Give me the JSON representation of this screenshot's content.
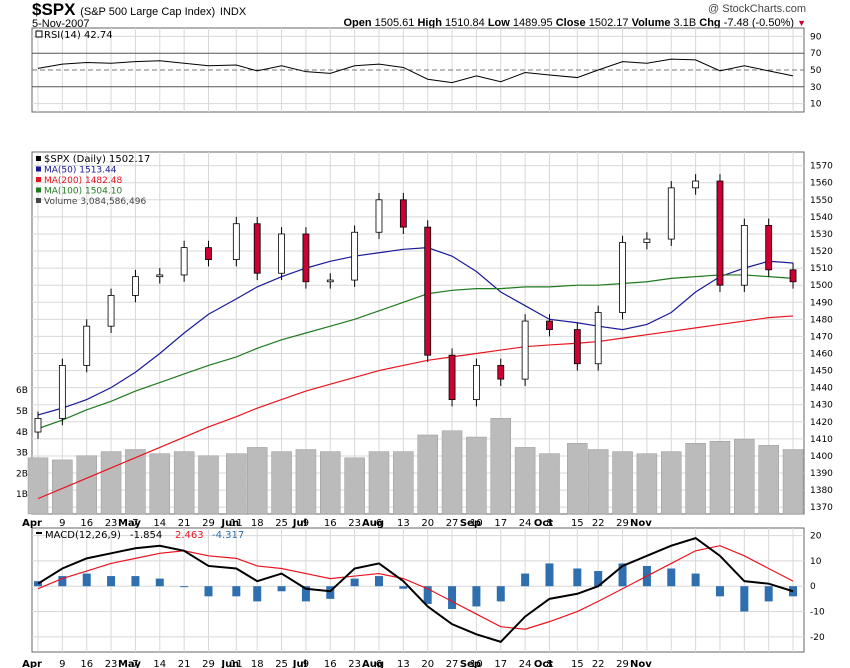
{
  "header": {
    "symbol": "$SPX",
    "name": "(S&P 500 Large Cap Index)",
    "exchange": "INDX",
    "date": "5-Nov-2007",
    "watermark": "@ StockCharts.com",
    "open_label": "Open",
    "open": "1505.61",
    "high_label": "High",
    "high": "1510.84",
    "low_label": "Low",
    "low": "1489.95",
    "close_label": "Close",
    "close": "1502.17",
    "volume_label": "Volume",
    "volume": "3.1B",
    "chg_label": "Chg",
    "chg": "-7.48 (-0.50%)"
  },
  "colors": {
    "up_candle": "#ffffff",
    "down_candle": "#cc0033",
    "ma50": "#1a1a99",
    "ma200": "#e8141e",
    "ma100": "#1f7a1f",
    "rsi": "#000000",
    "macd": "#000000",
    "macd_signal": "#e8141e",
    "histogram": "#2f6fb0",
    "volume": "#bbbbbb",
    "grid": "#d8d8d8"
  },
  "rsi_panel": {
    "legend": "RSI(14) 42.74",
    "ticks": [
      "90",
      "70",
      "50",
      "30",
      "10"
    ]
  },
  "price_panel": {
    "legend": [
      {
        "text": "$SPX (Daily) 1502.17",
        "color": "#000000"
      },
      {
        "text": "MA(50) 1513.44",
        "color": "#1a1a99"
      },
      {
        "text": "MA(200) 1482.48",
        "color": "#e8141e"
      },
      {
        "text": "MA(100) 1504.10",
        "color": "#1f7a1f"
      },
      {
        "text": "Volume 3,084,586,496",
        "color": "#444444"
      }
    ],
    "ticks": [
      "1570",
      "1560",
      "1550",
      "1540",
      "1530",
      "1520",
      "1510",
      "1500",
      "1490",
      "1480",
      "1470",
      "1460",
      "1450",
      "1440",
      "1430",
      "1420",
      "1410",
      "1400",
      "1390",
      "1380",
      "1370"
    ],
    "volume_ticks": [
      "6B",
      "5B",
      "4B",
      "3B",
      "2B",
      "1B"
    ]
  },
  "macd_panel": {
    "legend_label": "MACD(12,26,9)",
    "macd": "-1.854",
    "signal": "2.463",
    "histogram": "-4.317",
    "ticks": [
      "20",
      "10",
      "0",
      "-10",
      "-20"
    ]
  },
  "x_labels": [
    "Apr",
    "9",
    "16",
    "23",
    "May",
    "7",
    "14",
    "21",
    "29",
    "Jun",
    "11",
    "18",
    "25",
    "Jul",
    "9",
    "16",
    "23",
    "Aug",
    "6",
    "13",
    "20",
    "27",
    "Sep",
    "10",
    "17",
    "24",
    "Oct",
    "8",
    "15",
    "22",
    "29",
    "Nov"
  ],
  "chart_data": {
    "type": "candlestick",
    "title": "$SPX (S&P 500 Large Cap Index) INDX",
    "x_range": [
      "2007-04-02",
      "2007-11-05"
    ],
    "ylim": [
      1366,
      1578
    ],
    "grid": true,
    "legend_position": "top-left",
    "dates": [
      "2007-04-02",
      "2007-04-09",
      "2007-04-16",
      "2007-04-23",
      "2007-04-30",
      "2007-05-07",
      "2007-05-14",
      "2007-05-21",
      "2007-05-29",
      "2007-06-04",
      "2007-06-11",
      "2007-06-18",
      "2007-06-25",
      "2007-07-02",
      "2007-07-09",
      "2007-07-16",
      "2007-07-23",
      "2007-07-30",
      "2007-08-06",
      "2007-08-13",
      "2007-08-20",
      "2007-08-27",
      "2007-09-04",
      "2007-09-10",
      "2007-09-17",
      "2007-09-24",
      "2007-10-01",
      "2007-10-08",
      "2007-10-15",
      "2007-10-22",
      "2007-10-29",
      "2007-11-05"
    ],
    "close": [
      1422,
      1453,
      1476,
      1494,
      1505,
      1506,
      1522,
      1515,
      1536,
      1507,
      1530,
      1502,
      1503,
      1531,
      1550,
      1534,
      1459,
      1433,
      1453,
      1445,
      1479,
      1474,
      1454,
      1484,
      1525,
      1527,
      1557,
      1561,
      1500,
      1535,
      1509,
      1502
    ],
    "series": [
      {
        "name": "MA(50)",
        "values": [
          1424,
          1428,
          1433,
          1440,
          1449,
          1460,
          1472,
          1483,
          1492,
          1499,
          1505,
          1510,
          1514,
          1517,
          1519,
          1521,
          1522,
          1517,
          1508,
          1496,
          1488,
          1480,
          1478,
          1476,
          1474,
          1477,
          1484,
          1496,
          1505,
          1510,
          1514,
          1513
        ]
      },
      {
        "name": "MA(100)",
        "values": [
          1416,
          1421,
          1427,
          1432,
          1438,
          1443,
          1448,
          1453,
          1458,
          1463,
          1468,
          1472,
          1476,
          1480,
          1485,
          1490,
          1495,
          1497,
          1498,
          1498,
          1499,
          1499,
          1500,
          1500,
          1501,
          1502,
          1504,
          1505,
          1506,
          1506,
          1505,
          1504
        ]
      },
      {
        "name": "MA(200)",
        "values": [
          1375,
          1381,
          1387,
          1393,
          1399,
          1405,
          1411,
          1417,
          1423,
          1428,
          1433,
          1438,
          1442,
          1446,
          1450,
          1453,
          1456,
          1458,
          1460,
          1462,
          1464,
          1465,
          1466,
          1467,
          1469,
          1471,
          1473,
          1475,
          1477,
          1479,
          1481,
          1482
        ]
      },
      {
        "name": "RSI(14)",
        "values": [
          52,
          57,
          59,
          58,
          60,
          61,
          58,
          55,
          56,
          49,
          55,
          48,
          46,
          55,
          57,
          53,
          39,
          35,
          43,
          36,
          47,
          44,
          41,
          50,
          60,
          58,
          63,
          62,
          49,
          55,
          49,
          43
        ]
      },
      {
        "name": "MACD(12,26,9)",
        "values": [
          1,
          7,
          11,
          13,
          15,
          16,
          14,
          8,
          7,
          2,
          5,
          -1,
          -2,
          7,
          9,
          2,
          -8,
          -15,
          -19,
          -22,
          -12,
          -5,
          -3,
          0,
          8,
          12,
          16,
          19,
          12,
          2,
          1,
          -2
        ]
      },
      {
        "name": "Signal",
        "values": [
          -1,
          3,
          6,
          9,
          11,
          13,
          14,
          12,
          11,
          8,
          7,
          5,
          3,
          4,
          5,
          3,
          -1,
          -6,
          -11,
          -16,
          -17,
          -14,
          -10,
          -6,
          -1,
          4,
          9,
          14,
          16,
          12,
          7,
          2
        ]
      }
    ],
    "volume": [
      2.7,
      2.6,
      2.8,
      3.0,
      3.1,
      2.9,
      3.0,
      2.8,
      2.9,
      3.2,
      3.0,
      3.1,
      3.0,
      2.7,
      3.0,
      3.0,
      3.8,
      4.0,
      3.7,
      4.6,
      3.2,
      2.9,
      3.4,
      3.1,
      3.0,
      2.9,
      3.0,
      3.4,
      3.5,
      3.6,
      3.3,
      3.1
    ]
  }
}
